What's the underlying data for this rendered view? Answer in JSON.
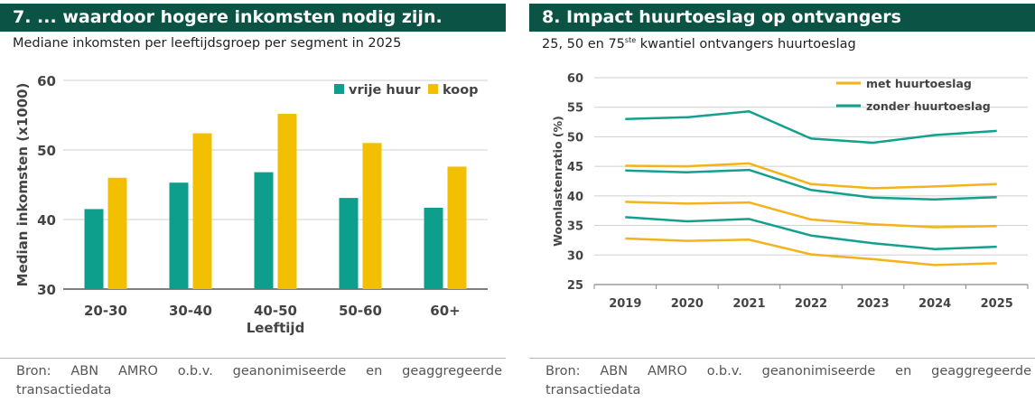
{
  "colors": {
    "header_bg": "#0b5345",
    "teal": "#0d9e8c",
    "gold": "#f2c000",
    "orange_line": "#f5b21b",
    "teal_line": "#14a08f",
    "axis": "#555555",
    "grid": "#cfcfcf"
  },
  "left": {
    "title": "7.  ... waardoor hogere inkomsten nodig zijn.",
    "subtitle": "Mediane inkomsten per leeftijdsgroep per segment in 2025",
    "source": "Bron: ABN AMRO o.b.v. geanonimiseerde en geaggregeerde transactiedata"
  },
  "right": {
    "title": "8.  Impact huurtoeslag op ontvangers",
    "subtitle_pre": "25, 50 en 75",
    "subtitle_sup": "ste",
    "subtitle_post": " kwantiel ontvangers huurtoeslag",
    "source": "Bron: ABN AMRO o.b.v. geanonimiseerde en geaggregeerde transactiedata"
  },
  "chart_data": [
    {
      "type": "bar",
      "title": "... waardoor hogere inkomsten nodig zijn.",
      "xlabel": "Leeftijd",
      "ylabel": "Median inkomsten (x1000)",
      "ylim": [
        30,
        60
      ],
      "yticks": [
        30,
        40,
        50,
        60
      ],
      "categories": [
        "20-30",
        "30-40",
        "40-50",
        "50-60",
        "60+"
      ],
      "legend_position": "top-right",
      "series": [
        {
          "name": "vrije huur",
          "color": "#0d9e8c",
          "values": [
            41.5,
            45.3,
            46.8,
            43.1,
            41.7
          ]
        },
        {
          "name": "koop",
          "color": "#f2c000",
          "values": [
            46.0,
            52.4,
            55.2,
            51.0,
            47.6
          ]
        }
      ]
    },
    {
      "type": "line",
      "title": "Impact huurtoeslag op ontvangers",
      "xlabel": "",
      "ylabel": "Woonlastenratio (%)",
      "ylim": [
        25,
        60
      ],
      "yticks": [
        25,
        30,
        35,
        40,
        45,
        50,
        55,
        60
      ],
      "x": [
        "2019",
        "2020",
        "2021",
        "2022",
        "2023",
        "2024",
        "2025"
      ],
      "legend_position": "top-right",
      "legend": [
        {
          "name": "met huurtoeslag",
          "color": "#f5b21b"
        },
        {
          "name": "zonder huurtoeslag",
          "color": "#14a08f"
        }
      ],
      "series": [
        {
          "name": "zonder huurtoeslag p75",
          "group": "zonder huurtoeslag",
          "color": "#14a08f",
          "values": [
            53.0,
            53.3,
            54.3,
            49.7,
            49.0,
            50.3,
            51.0
          ]
        },
        {
          "name": "met huurtoeslag p75",
          "group": "met huurtoeslag",
          "color": "#f5b21b",
          "values": [
            45.1,
            45.0,
            45.5,
            42.0,
            41.3,
            41.6,
            42.0
          ]
        },
        {
          "name": "zonder huurtoeslag p50",
          "group": "zonder huurtoeslag",
          "color": "#14a08f",
          "values": [
            44.3,
            44.0,
            44.4,
            41.0,
            39.7,
            39.4,
            39.8
          ]
        },
        {
          "name": "met huurtoeslag p50",
          "group": "met huurtoeslag",
          "color": "#f5b21b",
          "values": [
            39.0,
            38.7,
            38.9,
            36.0,
            35.2,
            34.7,
            34.9
          ]
        },
        {
          "name": "zonder huurtoeslag p25",
          "group": "zonder huurtoeslag",
          "color": "#14a08f",
          "values": [
            36.4,
            35.7,
            36.1,
            33.3,
            32.0,
            31.0,
            31.4
          ]
        },
        {
          "name": "met huurtoeslag p25",
          "group": "met huurtoeslag",
          "color": "#f5b21b",
          "values": [
            32.8,
            32.4,
            32.6,
            30.1,
            29.3,
            28.3,
            28.6
          ]
        }
      ]
    }
  ]
}
